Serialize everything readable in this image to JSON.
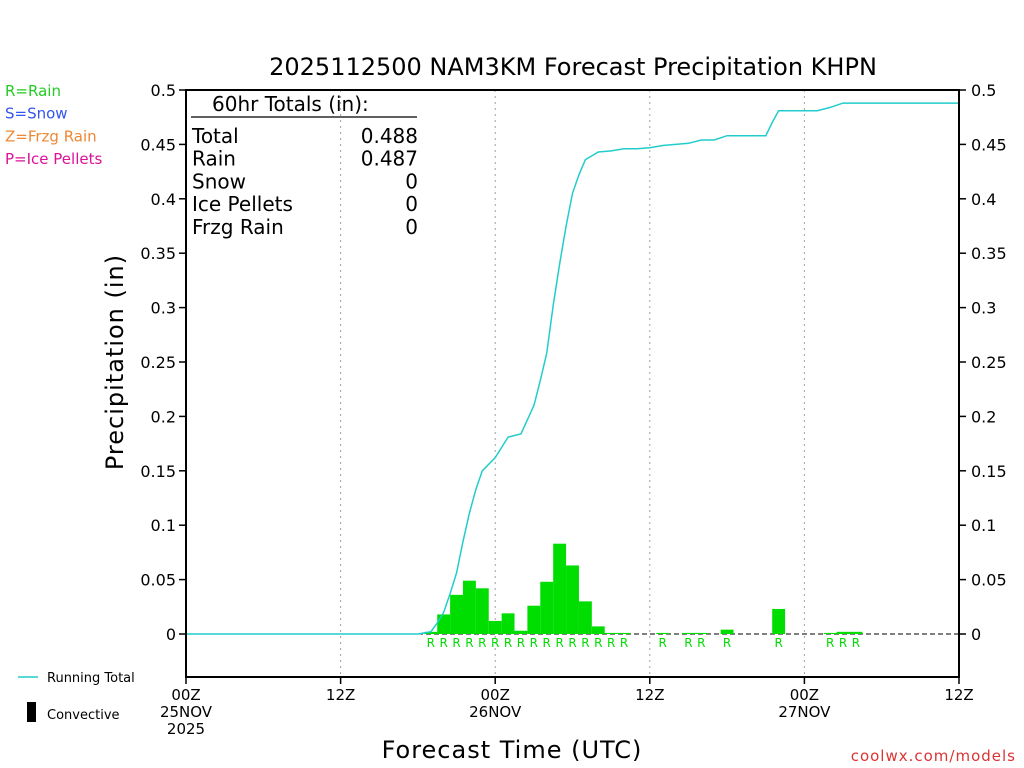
{
  "chart_data": {
    "type": "bar",
    "title": "2025112500 NAM3KM Forecast Precipitation KHPN",
    "xlabel": "Forecast Time (UTC)",
    "ylabel": "Precipitation (in)",
    "ylim": [
      0,
      0.5
    ],
    "xlim_hours": [
      0,
      60
    ],
    "y_ticks": [
      "0",
      "0.05",
      "0.1",
      "0.15",
      "0.2",
      "0.25",
      "0.3",
      "0.35",
      "0.4",
      "0.45",
      "0.5"
    ],
    "x_ticks": [
      {
        "hour": 0,
        "lines": [
          "00Z",
          "25NOV",
          "2025"
        ]
      },
      {
        "hour": 12,
        "lines": [
          "12Z"
        ]
      },
      {
        "hour": 24,
        "lines": [
          "00Z",
          "26NOV"
        ]
      },
      {
        "hour": 36,
        "lines": [
          "12Z"
        ]
      },
      {
        "hour": 48,
        "lines": [
          "00Z",
          "27NOV"
        ]
      },
      {
        "hour": 60,
        "lines": [
          "12Z"
        ]
      }
    ],
    "totals_box": {
      "heading": "60hr Totals (in):",
      "rows": [
        {
          "label": "Total",
          "value": "0.488"
        },
        {
          "label": "Rain",
          "value": "0.487"
        },
        {
          "label": "Snow",
          "value": "0"
        },
        {
          "label": "Ice Pellets",
          "value": "0"
        },
        {
          "label": "Frzg Rain",
          "value": "0"
        }
      ]
    },
    "type_legend": [
      {
        "label": "R=Rain",
        "color": "#22cc22"
      },
      {
        "label": "S=Snow",
        "color": "#3355ee"
      },
      {
        "label": "Z=Frzg Rain",
        "color": "#ee8833"
      },
      {
        "label": "P=Ice Pellets",
        "color": "#dd1199"
      }
    ],
    "series_legend": {
      "running_total": "Running Total",
      "convective": "Convective"
    },
    "bars": [
      {
        "hour": 19,
        "value": 0.002
      },
      {
        "hour": 20,
        "value": 0.018
      },
      {
        "hour": 21,
        "value": 0.036
      },
      {
        "hour": 22,
        "value": 0.049
      },
      {
        "hour": 23,
        "value": 0.042
      },
      {
        "hour": 24,
        "value": 0.012
      },
      {
        "hour": 25,
        "value": 0.019
      },
      {
        "hour": 26,
        "value": 0.003
      },
      {
        "hour": 27,
        "value": 0.026
      },
      {
        "hour": 28,
        "value": 0.048
      },
      {
        "hour": 29,
        "value": 0.083
      },
      {
        "hour": 30,
        "value": 0.063
      },
      {
        "hour": 31,
        "value": 0.03
      },
      {
        "hour": 32,
        "value": 0.007
      },
      {
        "hour": 33,
        "value": 0.001
      },
      {
        "hour": 34,
        "value": 0.001
      },
      {
        "hour": 37,
        "value": 0.001
      },
      {
        "hour": 39,
        "value": 0.001
      },
      {
        "hour": 40,
        "value": 0.001
      },
      {
        "hour": 42,
        "value": 0.004
      },
      {
        "hour": 46,
        "value": 0.023
      },
      {
        "hour": 50,
        "value": 0.001
      },
      {
        "hour": 51,
        "value": 0.002
      },
      {
        "hour": 52,
        "value": 0.002
      }
    ],
    "rain_marker_hours": [
      19,
      20,
      21,
      22,
      23,
      24,
      25,
      26,
      27,
      28,
      29,
      30,
      31,
      32,
      33,
      34,
      37,
      39,
      40,
      42,
      46,
      50,
      51,
      52
    ],
    "rain_marker_text": "R",
    "running_total": {
      "x": [
        0,
        18,
        19,
        19.5,
        20,
        20.5,
        21,
        21.5,
        22,
        22.5,
        23,
        24,
        25,
        26,
        27,
        27.5,
        28,
        28.5,
        29,
        29.5,
        30,
        30.5,
        31,
        32,
        33,
        34,
        35,
        36,
        37,
        38,
        39,
        40,
        41,
        42,
        43,
        44,
        45,
        45.5,
        46,
        47,
        48,
        49,
        50,
        51,
        52,
        60
      ],
      "y": [
        0,
        0,
        0.002,
        0.01,
        0.02,
        0.037,
        0.056,
        0.085,
        0.111,
        0.133,
        0.15,
        0.162,
        0.181,
        0.184,
        0.21,
        0.233,
        0.258,
        0.302,
        0.34,
        0.375,
        0.405,
        0.422,
        0.436,
        0.443,
        0.444,
        0.446,
        0.446,
        0.447,
        0.449,
        0.45,
        0.451,
        0.454,
        0.454,
        0.458,
        0.458,
        0.458,
        0.458,
        0.47,
        0.481,
        0.481,
        0.481,
        0.481,
        0.484,
        0.488,
        0.488,
        0.488
      ]
    },
    "colors": {
      "bar": "#00dd00",
      "running_total": "#22cccc",
      "grid": "#a0a0a0",
      "credit": "#dd3333"
    }
  },
  "credit": "coolwx.com/models"
}
